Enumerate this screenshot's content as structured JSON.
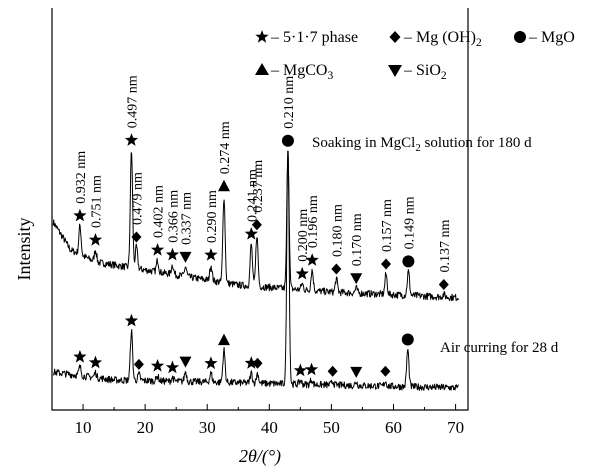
{
  "chart_data": {
    "type": "line",
    "xlabel": "2θ/(°)",
    "ylabel": "Intensity",
    "xlim": [
      5,
      72
    ],
    "x_ticks": [
      10,
      20,
      30,
      40,
      50,
      60,
      70
    ],
    "legend": {
      "placement": "top-right",
      "entries": [
        {
          "marker": "star",
          "label": "– 5·1·7 phase"
        },
        {
          "marker": "diamond",
          "label": "– Mg (OH)",
          "sub": "2"
        },
        {
          "marker": "circle",
          "label": "– MgO"
        },
        {
          "marker": "triangle-up",
          "label": "– MgCO",
          "sub": "3"
        },
        {
          "marker": "triangle-down",
          "label": "– SiO",
          "sub": "2"
        }
      ]
    },
    "series": [
      {
        "name": "Soaking in MgCl2 solution for 180 d",
        "label_prefix": "Soaking in MgCl",
        "label_sub": "2",
        "label_suffix": " solution for 180 d",
        "peaks": [
          {
            "x": 9.5,
            "h": 0.24,
            "phase": "star",
            "d": "0.932 nm"
          },
          {
            "x": 12.0,
            "h": 0.1,
            "phase": "star",
            "d": "0.751 nm"
          },
          {
            "x": 17.8,
            "h": 0.98,
            "phase": "star",
            "d": "0.497 nm"
          },
          {
            "x": 18.6,
            "h": 0.18,
            "phase": "diamond",
            "d": "0.479 nm"
          },
          {
            "x": 22.0,
            "h": 0.1,
            "phase": "star",
            "d": "0.402 nm"
          },
          {
            "x": 24.4,
            "h": 0.08,
            "phase": "star",
            "d": "0.366 nm"
          },
          {
            "x": 26.5,
            "h": 0.08,
            "phase": "triangle-down",
            "d": "0.337 nm"
          },
          {
            "x": 30.6,
            "h": 0.13,
            "phase": "star",
            "d": "0.290 nm"
          },
          {
            "x": 32.7,
            "h": 0.72,
            "phase": "triangle-up",
            "d": "0.274 nm"
          },
          {
            "x": 37.1,
            "h": 0.35,
            "phase": "star",
            "d": "0.241 nm"
          },
          {
            "x": 38.0,
            "h": 0.43,
            "phase": "diamond",
            "d": "0.237 nm"
          },
          {
            "x": 43.0,
            "h": 1.15,
            "phase": "circle",
            "d": "0.210 nm"
          },
          {
            "x": 45.3,
            "h": 0.05,
            "phase": "star",
            "d": "0.200 nm"
          },
          {
            "x": 46.9,
            "h": 0.17,
            "phase": "star",
            "d": "0.196 nm"
          },
          {
            "x": 50.8,
            "h": 0.11,
            "phase": "diamond",
            "d": "0.180 nm"
          },
          {
            "x": 54.0,
            "h": 0.04,
            "phase": "triangle-down",
            "d": "0.170 nm"
          },
          {
            "x": 58.8,
            "h": 0.17,
            "phase": "diamond",
            "d": "0.157 nm"
          },
          {
            "x": 62.4,
            "h": 0.2,
            "phase": "circle",
            "d": "0.149 nm"
          },
          {
            "x": 68.1,
            "h": 0.02,
            "phase": "diamond",
            "d": "0.137 nm"
          }
        ]
      },
      {
        "name": "Air curring for 28 d",
        "peaks": [
          {
            "x": 9.5,
            "h": 0.07,
            "phase": "star"
          },
          {
            "x": 12.0,
            "h": 0.04,
            "phase": "star"
          },
          {
            "x": 17.8,
            "h": 0.4,
            "phase": "star"
          },
          {
            "x": 19.0,
            "h": 0.05,
            "phase": "diamond"
          },
          {
            "x": 22.0,
            "h": 0.04,
            "phase": "star"
          },
          {
            "x": 24.4,
            "h": 0.03,
            "phase": "star"
          },
          {
            "x": 26.5,
            "h": 0.08,
            "phase": "triangle-down"
          },
          {
            "x": 30.6,
            "h": 0.07,
            "phase": "star"
          },
          {
            "x": 32.7,
            "h": 0.26,
            "phase": "triangle-up"
          },
          {
            "x": 37.1,
            "h": 0.08,
            "phase": "star"
          },
          {
            "x": 38.1,
            "h": 0.08,
            "phase": "diamond"
          },
          {
            "x": 43.0,
            "h": 1.95,
            "phase": "none"
          },
          {
            "x": 45.0,
            "h": 0.03,
            "phase": "star"
          },
          {
            "x": 46.8,
            "h": 0.04,
            "phase": "star"
          },
          {
            "x": 50.2,
            "h": 0.03,
            "phase": "diamond"
          },
          {
            "x": 54.0,
            "h": 0.03,
            "phase": "triangle-down"
          },
          {
            "x": 58.7,
            "h": 0.04,
            "phase": "diamond"
          },
          {
            "x": 62.3,
            "h": 0.3,
            "phase": "circle"
          }
        ]
      }
    ]
  }
}
